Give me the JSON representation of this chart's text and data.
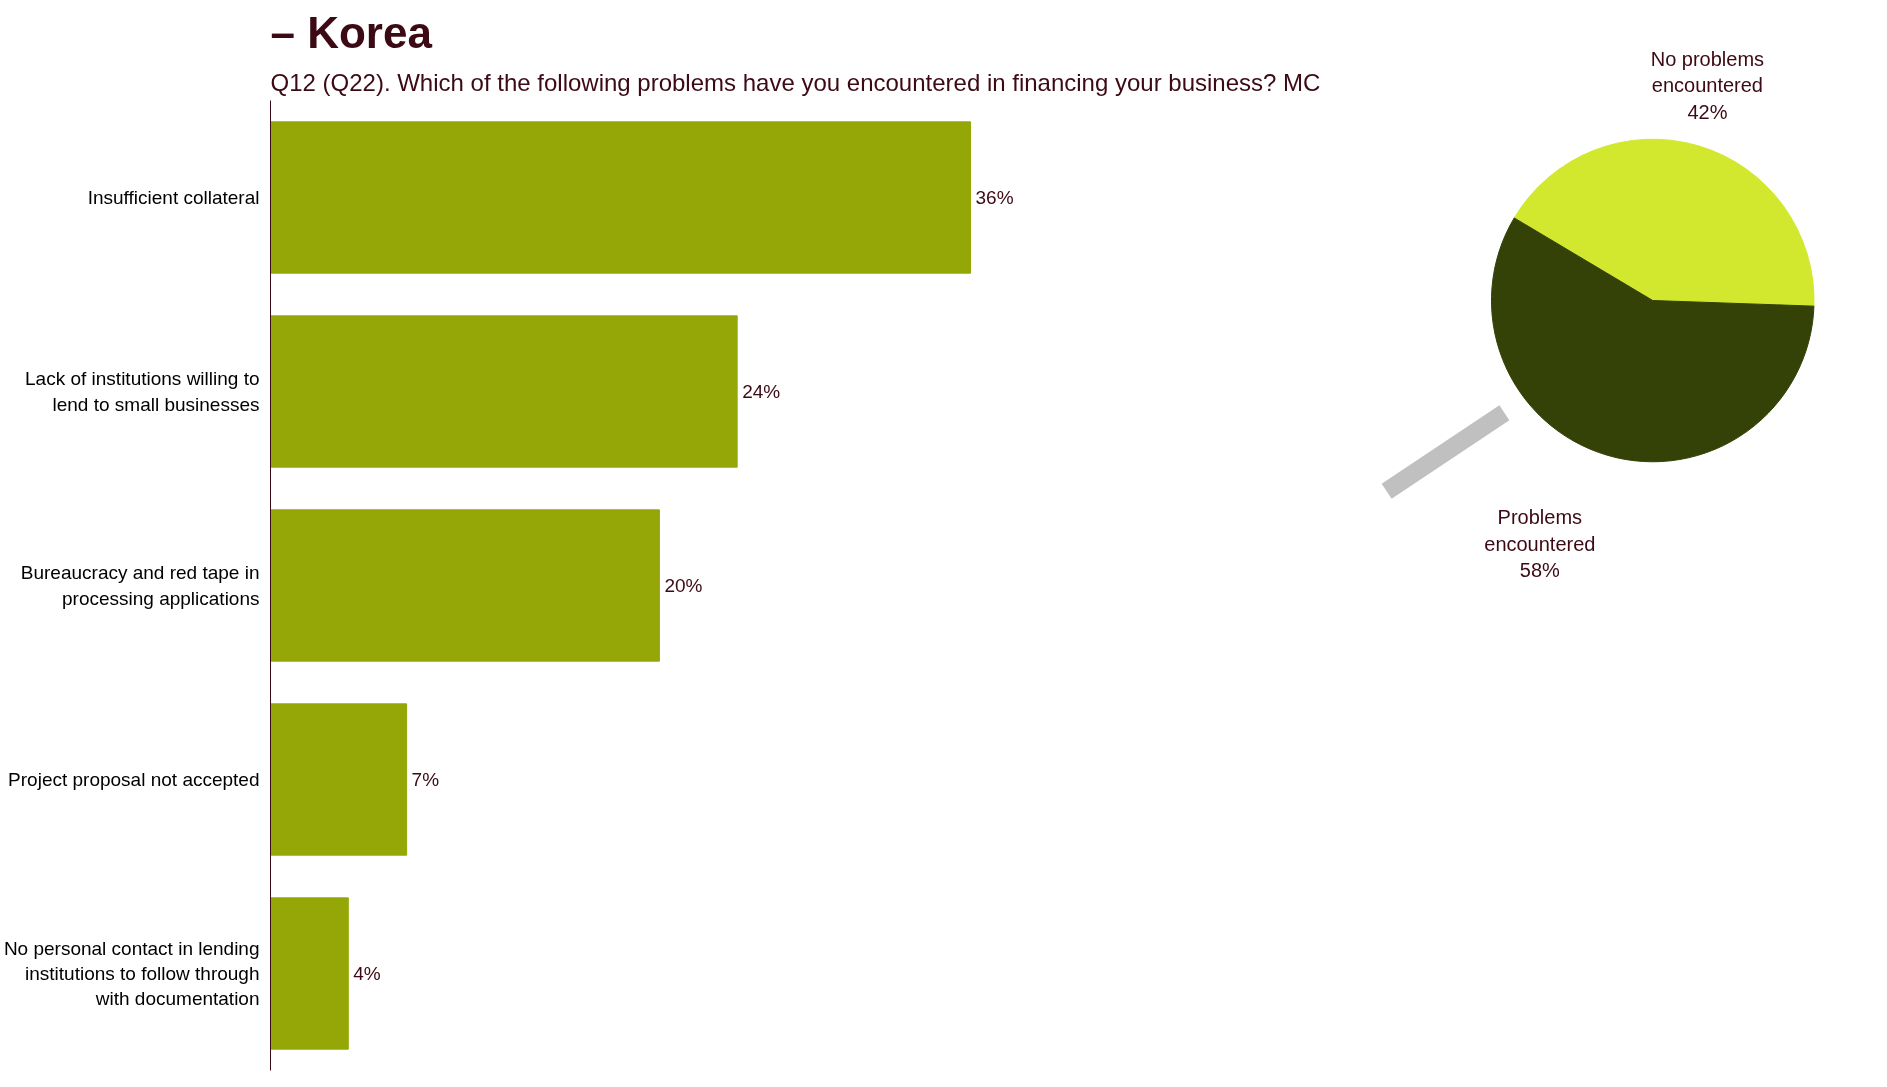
{
  "chart_data": [
    {
      "type": "bar",
      "orientation": "horizontal",
      "title": "– Korea",
      "subtitle": "Q12 (Q22). Which of the following problems have you encountered in financing your business? MC",
      "categories": [
        "Insufficient collateral",
        "Lack of institutions willing to lend to small businesses",
        "Bureaucracy and red tape in processing applications",
        "Project proposal not accepted",
        "No personal contact in lending institutions to follow through with documentation"
      ],
      "values": [
        36,
        24,
        20,
        7,
        4
      ],
      "value_labels": [
        "36%",
        "24%",
        "20%",
        "7%",
        "4%"
      ],
      "color": "#94a707",
      "grid": false
    },
    {
      "type": "pie",
      "categories": [
        "No problems encountered",
        "Problems encountered"
      ],
      "values": [
        42,
        58
      ],
      "value_labels": [
        "42%",
        "58%"
      ],
      "colors": [
        "#d2e82f",
        "#344208"
      ]
    }
  ]
}
